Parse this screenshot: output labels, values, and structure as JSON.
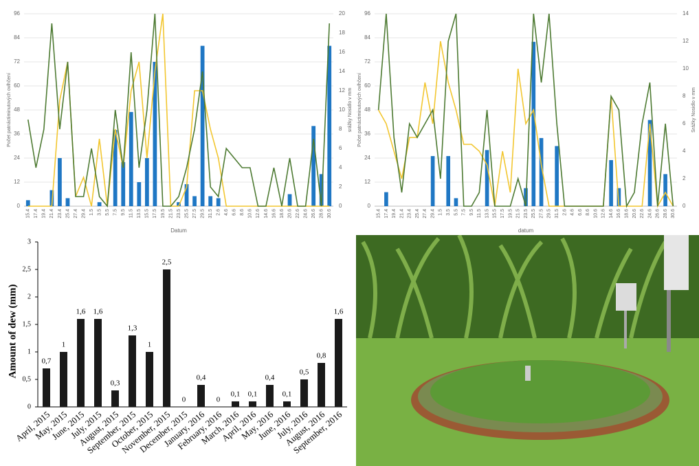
{
  "chart_data": [
    {
      "type": "combo",
      "x_label": "Datum",
      "y_label": "Počet patnáctiminutových ovlhčení",
      "y2_label": "srážky Nosidlo v mm",
      "categories": [
        "15.4",
        "17.4",
        "19.4",
        "21.4",
        "23.4",
        "25.4",
        "27.4",
        "29.4",
        "1.5",
        "3.5",
        "5.5",
        "7.5",
        "9.5",
        "11.5",
        "13.5",
        "15.5",
        "17.5",
        "19.5",
        "21.5",
        "23.5",
        "25.5",
        "27.5",
        "29.5",
        "31.5",
        "2.6",
        "4.6",
        "6.6",
        "8.6",
        "10.6",
        "12.6",
        "14.6",
        "16.6",
        "18.6",
        "20.6",
        "22.6",
        "24.6",
        "26.6",
        "28.6",
        "30.6"
      ],
      "ylim": [
        0,
        96
      ],
      "yticks": [
        0,
        12,
        24,
        36,
        48,
        60,
        72,
        84,
        96
      ],
      "y2lim": [
        0,
        20
      ],
      "y2ticks": [
        0,
        2,
        4,
        6,
        8,
        10,
        12,
        14,
        16,
        18,
        20
      ],
      "grid": true,
      "series": [
        {
          "type": "bar",
          "color": "#1f77c4",
          "values": [
            3,
            0,
            0,
            8,
            24,
            4,
            0,
            0,
            0,
            2,
            0,
            38,
            22,
            47,
            12,
            24,
            72,
            0,
            0,
            2,
            11,
            5,
            80,
            5,
            4,
            0,
            0,
            0,
            0,
            0,
            0,
            0,
            0,
            6,
            0,
            0,
            40,
            16,
            80
          ]
        },
        {
          "type": "line",
          "axis": "y2",
          "color": "#f2c62f",
          "values": [
            0,
            0,
            0,
            0,
            11,
            15,
            1,
            3,
            0,
            7,
            0,
            8,
            4,
            12,
            15,
            5,
            14,
            20,
            0,
            0,
            2,
            12,
            12,
            8,
            5,
            0,
            0,
            0,
            0,
            0,
            0,
            0,
            0,
            0,
            0,
            0,
            0,
            0,
            0
          ]
        },
        {
          "type": "line",
          "axis": "y2",
          "color": "#4d7a32",
          "values": [
            9,
            4,
            8,
            19,
            8,
            15,
            1,
            1,
            6,
            1,
            0,
            10,
            4,
            16,
            4,
            10,
            20,
            0,
            0,
            1,
            4,
            8,
            14,
            2,
            1,
            6,
            5,
            4,
            4,
            0,
            0,
            4,
            0,
            5,
            0,
            0,
            7,
            0,
            19
          ]
        }
      ]
    },
    {
      "type": "combo",
      "x_label": "datum",
      "y_label": "Počet patnáctiminutových ovlhčení",
      "y2_label": "Srážky Nosidlo v mm",
      "categories": [
        "15.4",
        "17.4",
        "19.4",
        "21.4",
        "23.4",
        "25.4",
        "27.4",
        "29.4",
        "1.5",
        "3.5",
        "5.5",
        "7.5",
        "9.5",
        "11.5",
        "13.5",
        "15.5",
        "17.5",
        "19.5",
        "21.5",
        "23.5",
        "25.5",
        "27.5",
        "29.5",
        "31.5",
        "2.6",
        "4.6",
        "6.6",
        "8.6",
        "10.6",
        "12.6",
        "14.6",
        "16.6",
        "18.6",
        "20.6",
        "22.6",
        "24.6",
        "26.6",
        "28.6",
        "30.6"
      ],
      "ylim": [
        0,
        96
      ],
      "yticks": [
        0,
        12,
        24,
        36,
        48,
        60,
        72,
        84,
        96
      ],
      "y2lim": [
        0,
        14
      ],
      "y2ticks": [
        0,
        2,
        4,
        6,
        8,
        10,
        12,
        14
      ],
      "grid": true,
      "series": [
        {
          "type": "bar",
          "color": "#1f77c4",
          "values": [
            0,
            7,
            0,
            0,
            0,
            0,
            0,
            25,
            0,
            25,
            4,
            0,
            0,
            0,
            28,
            0,
            0,
            0,
            0,
            9,
            82,
            34,
            0,
            30,
            0,
            0,
            0,
            0,
            0,
            0,
            23,
            9,
            0,
            0,
            0,
            43,
            0,
            16,
            0
          ]
        },
        {
          "type": "line",
          "axis": "y2",
          "color": "#f2c62f",
          "values": [
            7,
            6,
            4,
            2,
            5,
            5,
            9,
            6,
            12,
            9,
            7,
            4.5,
            4.5,
            4,
            3,
            0,
            4,
            1,
            10,
            6,
            7,
            3,
            0,
            0,
            0,
            0,
            0,
            0,
            0,
            0,
            8,
            0,
            0,
            0,
            0,
            6,
            0,
            1,
            0
          ]
        },
        {
          "type": "line",
          "axis": "y2",
          "color": "#4d7a32",
          "values": [
            7,
            14,
            5,
            1,
            6,
            5,
            6,
            7,
            2,
            12,
            14,
            0,
            0,
            1,
            7,
            0,
            0,
            0,
            2,
            0,
            14,
            9,
            14,
            6,
            0,
            0,
            0,
            0,
            0,
            0,
            8,
            7,
            0,
            1,
            6,
            9,
            0,
            6,
            0
          ]
        }
      ]
    },
    {
      "type": "bar",
      "y_label": "Amount of dew (mm)",
      "categories": [
        "April, 2015",
        "May, 2015",
        "June, 2015",
        "July, 2015",
        "August, 2015",
        "September, 2015",
        "October, 2015",
        "November, 2015",
        "December, 2015",
        "January, 2016",
        "February, 2016",
        "March, 2016",
        "April, 2016",
        "May, 2016",
        "June, 2016",
        "July, 2016",
        "August, 2016",
        "September, 2016"
      ],
      "values": [
        0.7,
        1,
        1.6,
        1.6,
        0.3,
        1.3,
        1,
        2.5,
        0,
        0.4,
        0,
        0.1,
        0.1,
        0.4,
        0.1,
        0.5,
        0.8,
        1.6
      ],
      "value_labels": [
        "0,7",
        "1",
        "1,6",
        "1,6",
        "0,3",
        "1,3",
        "1",
        "2,5",
        "0",
        "0,4",
        "0",
        "0,1",
        "0,1",
        "0,4",
        "0,1",
        "0,5",
        "0,8",
        "1,6"
      ],
      "color": "#1a1a1a",
      "ylim": [
        0,
        3
      ],
      "yticks": [
        0,
        {
          "value": 0.5,
          "label": "0,5"
        },
        1,
        {
          "value": 1.5,
          "label": "1,5"
        },
        2,
        {
          "value": 2.5,
          "label": "2,5"
        },
        3
      ]
    }
  ]
}
